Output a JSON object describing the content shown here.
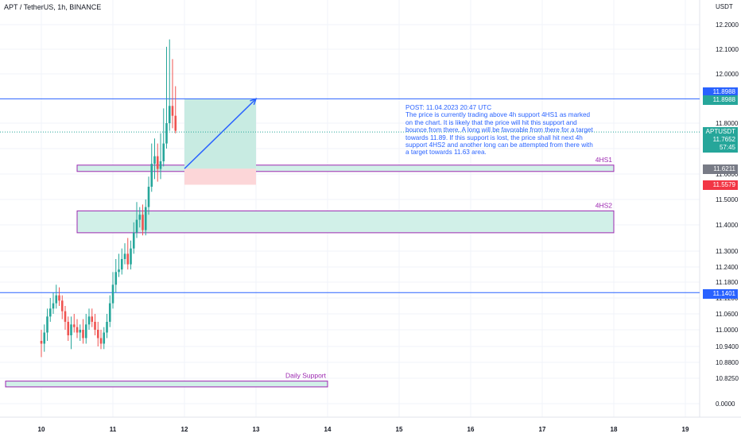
{
  "header": {
    "title": "APT / TetherUS, 1h, BINANCE"
  },
  "axis": {
    "currency_label": "USDT"
  },
  "chart_data": {
    "type": "candlestick",
    "symbol": "APTUSDT",
    "timeframe": "1h",
    "exchange": "BINANCE",
    "x_ticks": [
      "10",
      "11",
      "12",
      "13",
      "14",
      "15",
      "16",
      "17",
      "18",
      "19"
    ],
    "y_ticks": [
      "12.2000",
      "12.1000",
      "12.0000",
      "11.8000",
      "11.7000",
      "11.6000",
      "11.5000",
      "11.4000",
      "11.3000",
      "11.2400",
      "11.1800",
      "11.1200",
      "11.0600",
      "11.0000",
      "10.9400",
      "10.8800",
      "10.8250",
      "0.0000"
    ],
    "series": [
      {
        "x": [
          "10 00:00",
          "10 01:00",
          "10 02:00",
          "10 03:00",
          "10 04:00",
          "10 05:00",
          "10 06:00",
          "10 07:00",
          "10 08:00",
          "10 09:00",
          "10 10:00",
          "10 11:00",
          "10 12:00",
          "10 13:00",
          "10 14:00",
          "10 15:00",
          "10 16:00",
          "10 17:00",
          "10 18:00",
          "10 19:00",
          "10 20:00",
          "10 21:00",
          "10 22:00",
          "10 23:00",
          "11 00:00",
          "11 01:00",
          "11 02:00",
          "11 03:00",
          "11 04:00",
          "11 05:00",
          "11 06:00",
          "11 07:00",
          "11 08:00",
          "11 09:00",
          "11 10:00",
          "11 11:00",
          "11 12:00",
          "11 13:00",
          "11 14:00",
          "11 15:00",
          "11 16:00",
          "11 17:00",
          "11 18:00",
          "11 19:00",
          "11 20:00",
          "11 21:00"
        ],
        "open": [
          10.96,
          10.95,
          10.99,
          11.05,
          11.08,
          11.1,
          11.13,
          11.11,
          11.07,
          11.03,
          10.98,
          11.02,
          11.01,
          10.99,
          11.0,
          10.97,
          11.02,
          11.05,
          11.03,
          11.0,
          10.97,
          10.95,
          10.99,
          11.03,
          11.1,
          11.17,
          11.22,
          11.23,
          11.27,
          11.29,
          11.25,
          11.31,
          11.37,
          11.42,
          11.44,
          11.38,
          11.47,
          11.55,
          11.64,
          11.67,
          11.62,
          11.65,
          11.72,
          11.8,
          11.87,
          11.83
        ],
        "high": [
          11.0,
          11.02,
          11.08,
          11.12,
          11.14,
          11.17,
          11.16,
          11.13,
          11.09,
          11.05,
          11.05,
          11.06,
          11.04,
          11.02,
          11.04,
          11.06,
          11.08,
          11.08,
          11.06,
          11.03,
          11.0,
          11.01,
          11.06,
          11.13,
          11.22,
          11.27,
          11.29,
          11.31,
          11.33,
          11.35,
          11.34,
          11.41,
          11.49,
          11.47,
          11.48,
          11.5,
          11.59,
          11.72,
          11.74,
          11.72,
          11.76,
          11.86,
          12.11,
          12.14,
          12.06,
          11.95
        ],
        "low": [
          10.9,
          10.92,
          10.96,
          11.03,
          11.06,
          11.08,
          11.09,
          11.04,
          11.0,
          10.96,
          10.93,
          10.99,
          10.97,
          10.96,
          10.95,
          10.95,
          11.0,
          11.01,
          10.98,
          10.94,
          10.93,
          10.93,
          10.97,
          11.01,
          11.08,
          11.14,
          11.2,
          11.21,
          11.25,
          11.23,
          11.23,
          11.29,
          11.35,
          11.39,
          11.36,
          11.36,
          11.44,
          11.53,
          11.58,
          11.57,
          11.58,
          11.63,
          11.7,
          11.77,
          11.78,
          11.76
        ],
        "close": [
          10.95,
          10.99,
          11.05,
          11.08,
          11.1,
          11.13,
          11.11,
          11.07,
          11.03,
          10.98,
          11.02,
          11.01,
          10.99,
          11.0,
          10.97,
          11.02,
          11.05,
          11.03,
          11.0,
          10.97,
          10.95,
          10.99,
          11.03,
          11.1,
          11.17,
          11.22,
          11.23,
          11.27,
          11.29,
          11.25,
          11.31,
          11.37,
          11.42,
          11.44,
          11.38,
          11.47,
          11.55,
          11.64,
          11.67,
          11.62,
          11.65,
          11.72,
          11.8,
          11.87,
          11.83,
          11.77
        ]
      }
    ],
    "levels": [
      {
        "name": "resistance",
        "price": 11.8988,
        "color": "#2962ff"
      },
      {
        "name": "support",
        "price": 11.1401,
        "color": "#2962ff"
      },
      {
        "name": "current",
        "price": 11.7652,
        "color": "#26a69a"
      }
    ],
    "zones": [
      {
        "label": "4HS1",
        "top": 11.635,
        "bottom": 11.61,
        "x_start": "10 12:00",
        "x_end": "18 00:00"
      },
      {
        "label": "4HS2",
        "top": 11.455,
        "bottom": 11.37,
        "x_start": "10 12:00",
        "x_end": "18 00:00"
      },
      {
        "label": "Daily Support",
        "top": 10.815,
        "bottom": 10.795,
        "x_start": "09 12:00",
        "x_end": "14 00:00"
      }
    ],
    "long_position": {
      "entry": 11.6211,
      "target": 11.8988,
      "stop": 11.5579,
      "x_start": "12 00:00",
      "x_end": "13 00:00"
    }
  },
  "price_tags": [
    {
      "label": "11.8988",
      "color": "#2962ff"
    },
    {
      "label": "11.8988",
      "color": "#26a69a"
    },
    {
      "label": "APTUSDT",
      "color": "#26a69a"
    },
    {
      "label": "11.7652",
      "color": "#26a69a"
    },
    {
      "label": "57:45",
      "color": "#26a69a"
    },
    {
      "label": "11.6211",
      "color": "#787b86"
    },
    {
      "label": "11.5579",
      "color": "#f23645"
    },
    {
      "label": "11.1401",
      "color": "#2962ff"
    }
  ],
  "note": {
    "title": "POST: 11.04.2023 20:47 UTC",
    "body": "The price is currently trading above 4h support 4HS1 as marked on the chart. It is likely that the price will hit this support and bounce from there. A long will be favorable from there for a target towards 11.89. If this support is lost, the price shall hit next 4h support 4HS2 and another long can be attempted from there with a target towards 11.63 area."
  },
  "colors": {
    "up": "#26a69a",
    "down": "#ef5350",
    "line": "#2962ff",
    "zone_border": "#9c27b0",
    "zone_fill": "#d1f0e8",
    "profit": "#c8ebe2",
    "loss": "#fcd6d8"
  }
}
